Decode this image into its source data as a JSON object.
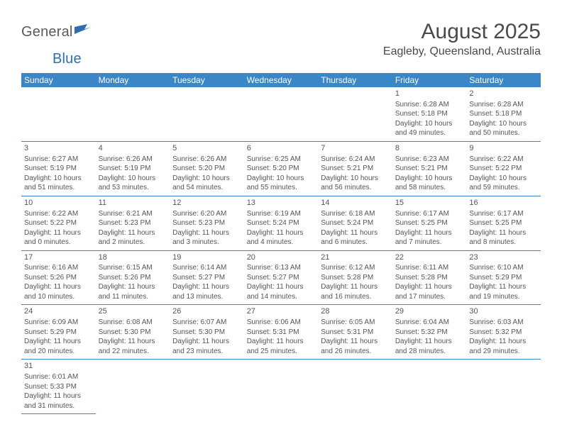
{
  "logo": {
    "word1": "General",
    "word2": "Blue"
  },
  "title": "August 2025",
  "location": "Eagleby, Queensland, Australia",
  "colors": {
    "header_bg": "#3b86c6",
    "header_fg": "#ffffff",
    "rule": "#3b86c6",
    "text": "#555555",
    "logo_blue": "#2f6fb0"
  },
  "dayHeaders": [
    "Sunday",
    "Monday",
    "Tuesday",
    "Wednesday",
    "Thursday",
    "Friday",
    "Saturday"
  ],
  "weeks": [
    [
      null,
      null,
      null,
      null,
      null,
      {
        "n": "1",
        "sr": "Sunrise: 6:28 AM",
        "ss": "Sunset: 5:18 PM",
        "dl1": "Daylight: 10 hours",
        "dl2": "and 49 minutes."
      },
      {
        "n": "2",
        "sr": "Sunrise: 6:28 AM",
        "ss": "Sunset: 5:18 PM",
        "dl1": "Daylight: 10 hours",
        "dl2": "and 50 minutes."
      }
    ],
    [
      {
        "n": "3",
        "sr": "Sunrise: 6:27 AM",
        "ss": "Sunset: 5:19 PM",
        "dl1": "Daylight: 10 hours",
        "dl2": "and 51 minutes."
      },
      {
        "n": "4",
        "sr": "Sunrise: 6:26 AM",
        "ss": "Sunset: 5:19 PM",
        "dl1": "Daylight: 10 hours",
        "dl2": "and 53 minutes."
      },
      {
        "n": "5",
        "sr": "Sunrise: 6:26 AM",
        "ss": "Sunset: 5:20 PM",
        "dl1": "Daylight: 10 hours",
        "dl2": "and 54 minutes."
      },
      {
        "n": "6",
        "sr": "Sunrise: 6:25 AM",
        "ss": "Sunset: 5:20 PM",
        "dl1": "Daylight: 10 hours",
        "dl2": "and 55 minutes."
      },
      {
        "n": "7",
        "sr": "Sunrise: 6:24 AM",
        "ss": "Sunset: 5:21 PM",
        "dl1": "Daylight: 10 hours",
        "dl2": "and 56 minutes."
      },
      {
        "n": "8",
        "sr": "Sunrise: 6:23 AM",
        "ss": "Sunset: 5:21 PM",
        "dl1": "Daylight: 10 hours",
        "dl2": "and 58 minutes."
      },
      {
        "n": "9",
        "sr": "Sunrise: 6:22 AM",
        "ss": "Sunset: 5:22 PM",
        "dl1": "Daylight: 10 hours",
        "dl2": "and 59 minutes."
      }
    ],
    [
      {
        "n": "10",
        "sr": "Sunrise: 6:22 AM",
        "ss": "Sunset: 5:22 PM",
        "dl1": "Daylight: 11 hours",
        "dl2": "and 0 minutes."
      },
      {
        "n": "11",
        "sr": "Sunrise: 6:21 AM",
        "ss": "Sunset: 5:23 PM",
        "dl1": "Daylight: 11 hours",
        "dl2": "and 2 minutes."
      },
      {
        "n": "12",
        "sr": "Sunrise: 6:20 AM",
        "ss": "Sunset: 5:23 PM",
        "dl1": "Daylight: 11 hours",
        "dl2": "and 3 minutes."
      },
      {
        "n": "13",
        "sr": "Sunrise: 6:19 AM",
        "ss": "Sunset: 5:24 PM",
        "dl1": "Daylight: 11 hours",
        "dl2": "and 4 minutes."
      },
      {
        "n": "14",
        "sr": "Sunrise: 6:18 AM",
        "ss": "Sunset: 5:24 PM",
        "dl1": "Daylight: 11 hours",
        "dl2": "and 6 minutes."
      },
      {
        "n": "15",
        "sr": "Sunrise: 6:17 AM",
        "ss": "Sunset: 5:25 PM",
        "dl1": "Daylight: 11 hours",
        "dl2": "and 7 minutes."
      },
      {
        "n": "16",
        "sr": "Sunrise: 6:17 AM",
        "ss": "Sunset: 5:25 PM",
        "dl1": "Daylight: 11 hours",
        "dl2": "and 8 minutes."
      }
    ],
    [
      {
        "n": "17",
        "sr": "Sunrise: 6:16 AM",
        "ss": "Sunset: 5:26 PM",
        "dl1": "Daylight: 11 hours",
        "dl2": "and 10 minutes."
      },
      {
        "n": "18",
        "sr": "Sunrise: 6:15 AM",
        "ss": "Sunset: 5:26 PM",
        "dl1": "Daylight: 11 hours",
        "dl2": "and 11 minutes."
      },
      {
        "n": "19",
        "sr": "Sunrise: 6:14 AM",
        "ss": "Sunset: 5:27 PM",
        "dl1": "Daylight: 11 hours",
        "dl2": "and 13 minutes."
      },
      {
        "n": "20",
        "sr": "Sunrise: 6:13 AM",
        "ss": "Sunset: 5:27 PM",
        "dl1": "Daylight: 11 hours",
        "dl2": "and 14 minutes."
      },
      {
        "n": "21",
        "sr": "Sunrise: 6:12 AM",
        "ss": "Sunset: 5:28 PM",
        "dl1": "Daylight: 11 hours",
        "dl2": "and 16 minutes."
      },
      {
        "n": "22",
        "sr": "Sunrise: 6:11 AM",
        "ss": "Sunset: 5:28 PM",
        "dl1": "Daylight: 11 hours",
        "dl2": "and 17 minutes."
      },
      {
        "n": "23",
        "sr": "Sunrise: 6:10 AM",
        "ss": "Sunset: 5:29 PM",
        "dl1": "Daylight: 11 hours",
        "dl2": "and 19 minutes."
      }
    ],
    [
      {
        "n": "24",
        "sr": "Sunrise: 6:09 AM",
        "ss": "Sunset: 5:29 PM",
        "dl1": "Daylight: 11 hours",
        "dl2": "and 20 minutes."
      },
      {
        "n": "25",
        "sr": "Sunrise: 6:08 AM",
        "ss": "Sunset: 5:30 PM",
        "dl1": "Daylight: 11 hours",
        "dl2": "and 22 minutes."
      },
      {
        "n": "26",
        "sr": "Sunrise: 6:07 AM",
        "ss": "Sunset: 5:30 PM",
        "dl1": "Daylight: 11 hours",
        "dl2": "and 23 minutes."
      },
      {
        "n": "27",
        "sr": "Sunrise: 6:06 AM",
        "ss": "Sunset: 5:31 PM",
        "dl1": "Daylight: 11 hours",
        "dl2": "and 25 minutes."
      },
      {
        "n": "28",
        "sr": "Sunrise: 6:05 AM",
        "ss": "Sunset: 5:31 PM",
        "dl1": "Daylight: 11 hours",
        "dl2": "and 26 minutes."
      },
      {
        "n": "29",
        "sr": "Sunrise: 6:04 AM",
        "ss": "Sunset: 5:32 PM",
        "dl1": "Daylight: 11 hours",
        "dl2": "and 28 minutes."
      },
      {
        "n": "30",
        "sr": "Sunrise: 6:03 AM",
        "ss": "Sunset: 5:32 PM",
        "dl1": "Daylight: 11 hours",
        "dl2": "and 29 minutes."
      }
    ],
    [
      {
        "n": "31",
        "sr": "Sunrise: 6:01 AM",
        "ss": "Sunset: 5:33 PM",
        "dl1": "Daylight: 11 hours",
        "dl2": "and 31 minutes."
      },
      null,
      null,
      null,
      null,
      null,
      null
    ]
  ]
}
